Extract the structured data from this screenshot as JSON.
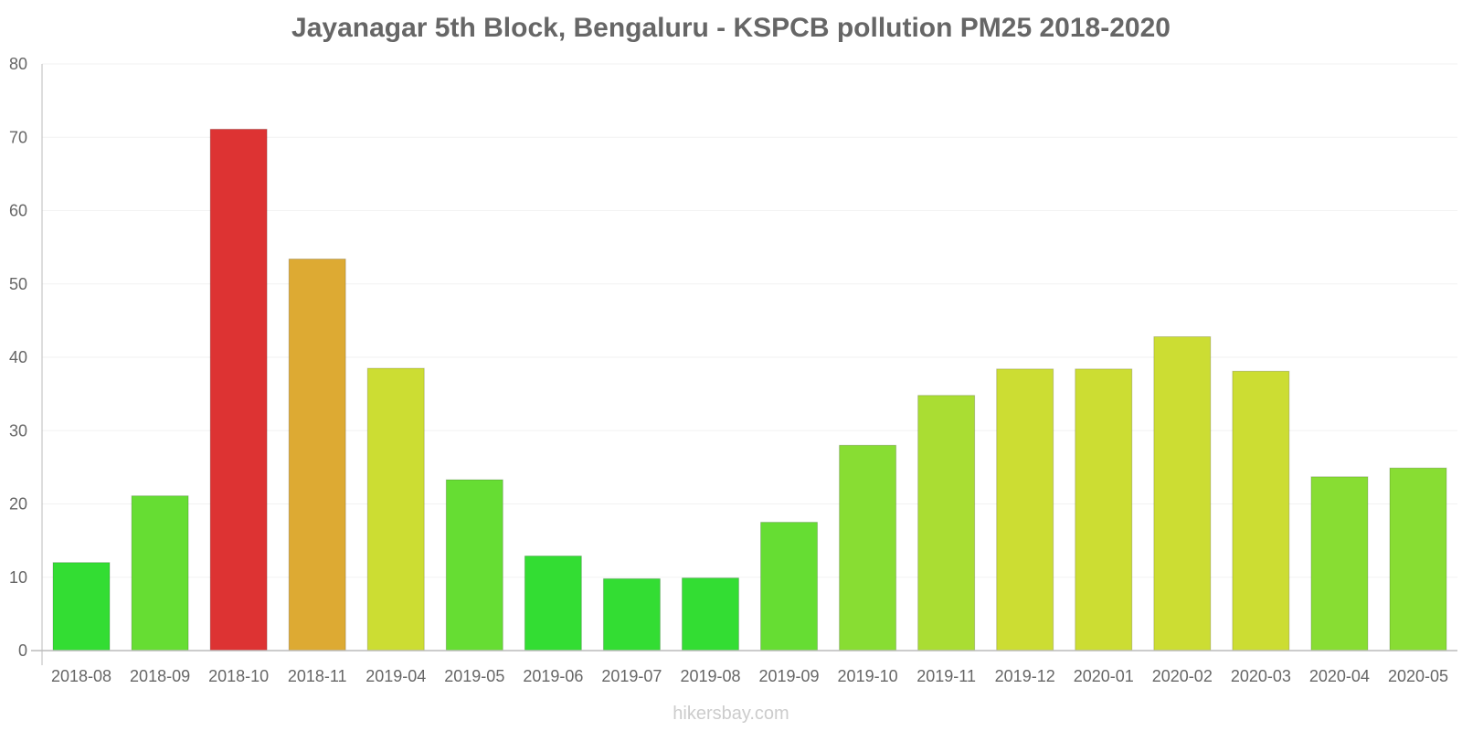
{
  "chart_data": {
    "type": "bar",
    "title": "Jayanagar 5th Block, Bengaluru - KSPCB pollution PM25 2018-2020",
    "xlabel": "",
    "ylabel": "",
    "ylim": [
      0,
      80
    ],
    "yticks": [
      0,
      10,
      20,
      30,
      40,
      50,
      60,
      70,
      80
    ],
    "grid": true,
    "categories": [
      "2018-08",
      "2018-09",
      "2018-10",
      "2018-11",
      "2019-04",
      "2019-05",
      "2019-06",
      "2019-07",
      "2019-08",
      "2019-09",
      "2019-10",
      "2019-11",
      "2019-12",
      "2020-01",
      "2020-02",
      "2020-03",
      "2020-04",
      "2020-05"
    ],
    "values": [
      12,
      21.1,
      71.1,
      53.4,
      38.5,
      23.3,
      12.9,
      9.8,
      9.9,
      17.5,
      28,
      34.8,
      38.4,
      38.4,
      42.8,
      38.1,
      23.7,
      24.9
    ],
    "colors": [
      "#33dd33",
      "#66dd33",
      "#dd3333",
      "#ddaa33",
      "#ccdd33",
      "#66dd33",
      "#33dd33",
      "#33dd33",
      "#33dd33",
      "#66dd33",
      "#88dd33",
      "#aadd33",
      "#ccdd33",
      "#ccdd33",
      "#ccdd33",
      "#ccdd33",
      "#88dd33",
      "#88dd33"
    ]
  },
  "watermark": "hikersbay.com"
}
